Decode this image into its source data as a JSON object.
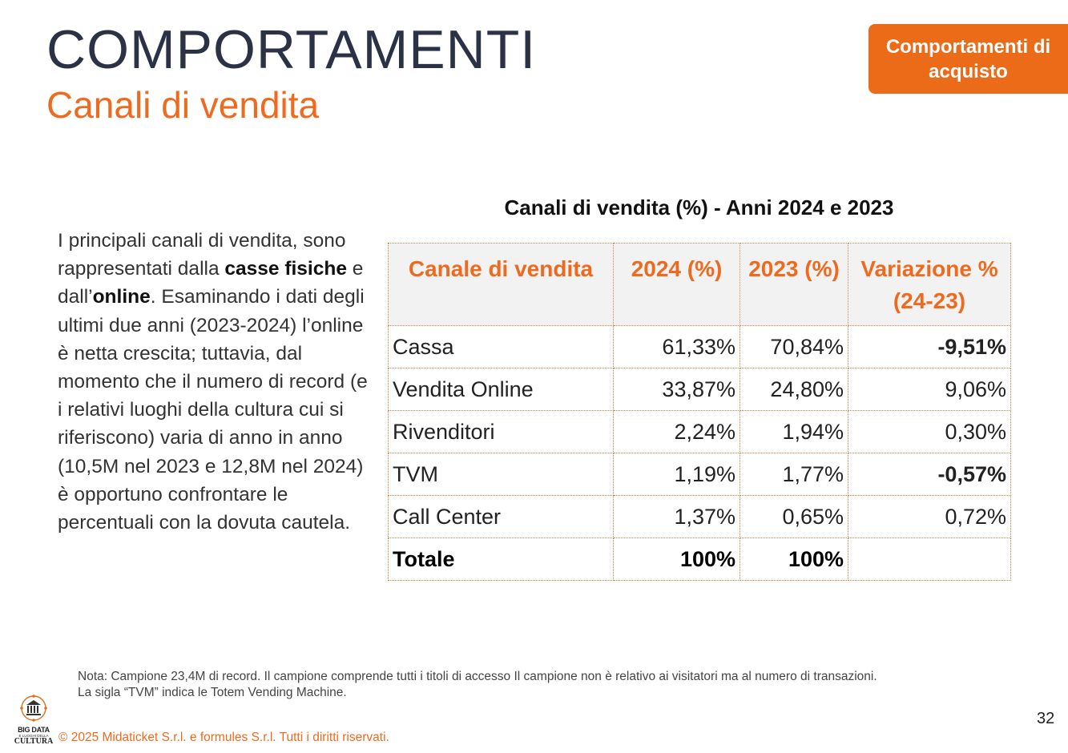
{
  "header": {
    "title": "COMPORTAMENTI",
    "subtitle": "Canali di vendita",
    "badge": "Comportamenti di acquisto"
  },
  "intro": {
    "p1": "I principali canali di vendita, sono rappresentati dalla ",
    "b1": "casse fisiche",
    "p2": " e dall’",
    "b2": "online",
    "p3": ". Esaminando i dati degli ultimi due anni (2023-2024) l’online è netta crescita; tuttavia, dal momento che il numero di record (e i relativi luoghi della cultura  cui si riferiscono) varia di anno in anno (10,5M nel 2023 e 12,8M nel 2024) è opportuno confrontare le percentuali con la dovuta cautela."
  },
  "table": {
    "title": "Canali di vendita (%) - Anni 2024 e 2023",
    "headers": [
      "Canale di vendita",
      "2024 (%)",
      "2023 (%)",
      "Variazione % (24-23)"
    ],
    "rows": [
      {
        "canale": "Cassa",
        "y2024": "61,33%",
        "y2023": "70,84%",
        "var": "-9,51%"
      },
      {
        "canale": "Vendita Online",
        "y2024": "33,87%",
        "y2023": "24,80%",
        "var": "9,06%"
      },
      {
        "canale": "Rivenditori",
        "y2024": "2,24%",
        "y2023": "1,94%",
        "var": "0,30%"
      },
      {
        "canale": "TVM",
        "y2024": "1,19%",
        "y2023": "1,77%",
        "var": "-0,57%"
      },
      {
        "canale": "Call Center",
        "y2024": "1,37%",
        "y2023": "0,65%",
        "var": "0,72%"
      }
    ],
    "total": {
      "canale": "Totale",
      "y2024": "100%",
      "y2023": "100%",
      "var": ""
    }
  },
  "note": {
    "line1": "Nota: Campione 23,4M di record. Il campione comprende tutti i titoli di accesso Il campione non è relativo ai visitatori ma al numero di transazioni.",
    "line2": "La sigla “TVM” indica le Totem Vending Machine."
  },
  "footer": {
    "copyright": "© 2025 Midaticket S.r.l. e formules S.r.l. Tutti i diritti riservati.",
    "page_number": "32",
    "logo": {
      "line1": "BIG DATA",
      "line2": "E LUOGHI DELLA",
      "line3": "CULTURA"
    }
  },
  "colors": {
    "accent": "#ee6a1e",
    "negative": "#e81c1c",
    "title": "#2b3245"
  }
}
